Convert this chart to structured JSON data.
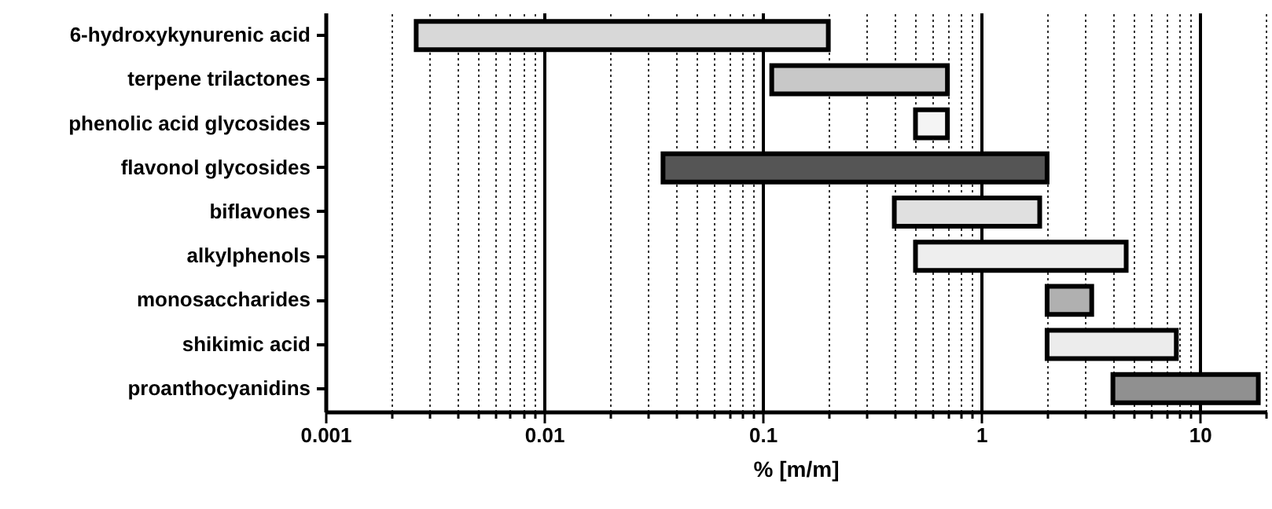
{
  "chart_data": {
    "type": "bar",
    "orientation": "horizontal",
    "log": "x",
    "grid": true,
    "xlabel": "% [m/m]",
    "categories": [
      "6-hydroxykynurenic acid",
      "terpene trilactones",
      "phenolic acid glycosides",
      "flavonol glycosides",
      "biflavones",
      "alkylphenols",
      "monosaccharides",
      "shikimic acid",
      "proanthocyanidins"
    ],
    "base": [
      0.0026,
      0.11,
      0.5,
      0.035,
      0.4,
      0.5,
      2,
      2,
      4
    ],
    "values": [
      0.197,
      0.59,
      0.2,
      1.965,
      1.45,
      4.1,
      1.2,
      5.8,
      14.5
    ],
    "colors": [
      "#d8d8d8",
      "#c8c8c8",
      "#f4f4f4",
      "#555555",
      "#e0e0e0",
      "#eeeeee",
      "#b0b0b0",
      "#ececec",
      "#909090"
    ],
    "xlim": [
      0.001,
      20
    ],
    "xticks": [
      0.001,
      {
        "value": 0.002,
        "label": null
      },
      {
        "value": 0.003,
        "label": null
      },
      {
        "value": 0.004,
        "label": null
      },
      {
        "value": 0.005,
        "label": null
      },
      {
        "value": 0.006,
        "label": null
      },
      {
        "value": 0.007,
        "label": null
      },
      {
        "value": 0.008,
        "label": null
      },
      {
        "value": 0.009,
        "label": null
      },
      0.01,
      {
        "value": 0.02,
        "label": null
      },
      {
        "value": 0.03,
        "label": null
      },
      {
        "value": 0.04,
        "label": null
      },
      {
        "value": 0.05,
        "label": null
      },
      {
        "value": 0.06,
        "label": null
      },
      {
        "value": 0.07,
        "label": null
      },
      {
        "value": 0.08,
        "label": null
      },
      {
        "value": 0.09,
        "label": null
      },
      0.1,
      {
        "value": 0.2,
        "label": null
      },
      {
        "value": 0.3,
        "label": null
      },
      {
        "value": 0.4,
        "label": null
      },
      {
        "value": 0.5,
        "label": null
      },
      {
        "value": 0.6,
        "label": null
      },
      {
        "value": 0.7,
        "label": null
      },
      {
        "value": 0.8,
        "label": null
      },
      {
        "value": 0.9,
        "label": null
      },
      1,
      {
        "value": 2,
        "label": null
      },
      {
        "value": 3,
        "label": null
      },
      {
        "value": 4,
        "label": null
      },
      {
        "value": 5,
        "label": null
      },
      {
        "value": 6,
        "label": null
      },
      {
        "value": 7,
        "label": null
      },
      {
        "value": 8,
        "label": null
      },
      {
        "value": 9,
        "label": null
      },
      10,
      {
        "value": 20,
        "label": null
      }
    ]
  }
}
